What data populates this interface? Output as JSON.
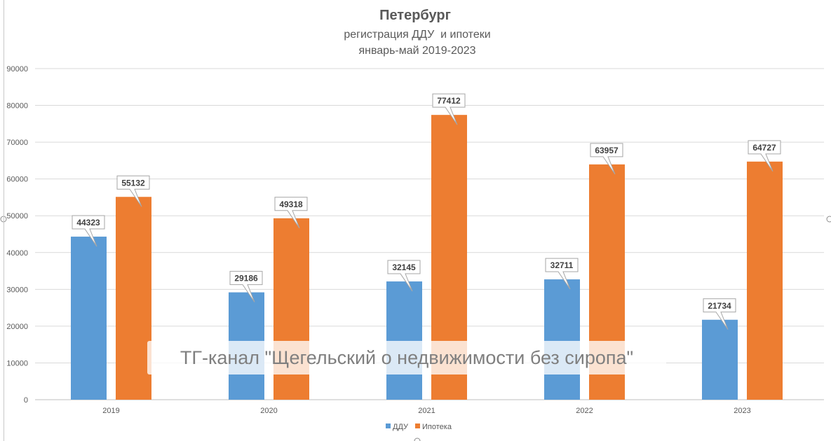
{
  "chart_data": {
    "type": "bar",
    "title": "Петербург",
    "subtitle_lines": [
      "регистрация ДДУ  и ипотеки",
      "январь-май 2019-2023"
    ],
    "categories": [
      "2019",
      "2020",
      "2021",
      "2022",
      "2023"
    ],
    "series": [
      {
        "name": "ДДУ",
        "color": "#5b9bd5",
        "values": [
          44323,
          29186,
          32145,
          32711,
          21734
        ]
      },
      {
        "name": "Ипотека",
        "color": "#ed7d31",
        "values": [
          55132,
          49318,
          77412,
          63957,
          64727
        ]
      }
    ],
    "y_ticks": [
      "0",
      "10000",
      "20000",
      "30000",
      "40000",
      "50000",
      "60000",
      "70000",
      "80000",
      "90000"
    ],
    "ylim": [
      0,
      90000
    ],
    "grid": true,
    "legend_position": "bottom",
    "xlabel": "",
    "ylabel": ""
  },
  "watermark": "ТГ-канал \"Щегельский о недвижимости без сиропа\""
}
